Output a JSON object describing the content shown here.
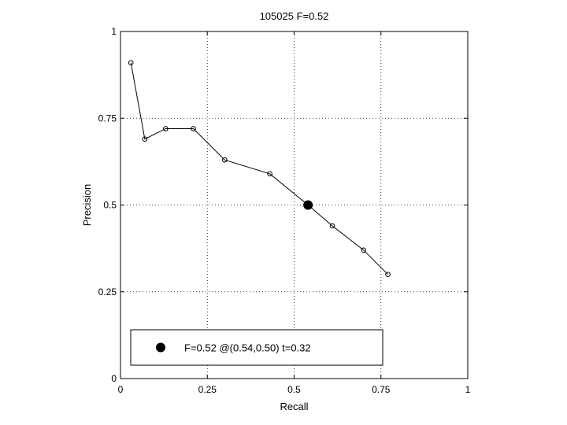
{
  "chart_data": {
    "type": "line",
    "title": "105025 F=0.52",
    "xlabel": "Recall",
    "ylabel": "Precision",
    "xlim": [
      0,
      1
    ],
    "ylim": [
      0,
      1
    ],
    "xticks": [
      0,
      0.25,
      0.5,
      0.75,
      1
    ],
    "yticks": [
      0,
      0.25,
      0.5,
      0.75,
      1
    ],
    "xtick_labels": [
      "0",
      "0.25",
      "0.5",
      "0.75",
      "1"
    ],
    "ytick_labels": [
      "0",
      "0.25",
      "0.5",
      "0.75",
      "1"
    ],
    "grid": true,
    "series": [
      {
        "x": [
          0.03,
          0.07,
          0.13,
          0.21,
          0.3,
          0.43,
          0.54,
          0.61,
          0.7,
          0.77
        ],
        "y": [
          0.91,
          0.69,
          0.72,
          0.72,
          0.63,
          0.59,
          0.5,
          0.44,
          0.37,
          0.3
        ]
      }
    ],
    "highlight_point": {
      "x": 0.54,
      "y": 0.5
    },
    "legend": {
      "placement": "bottom-left",
      "text": "F=0.52 @(0.54,0.50) t=0.32"
    }
  }
}
